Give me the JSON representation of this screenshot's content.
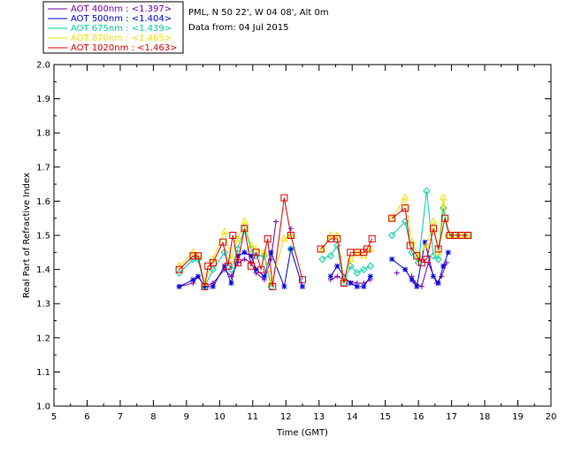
{
  "header": {
    "location": "PML, N 50 22', W 04 08', Alt 0m",
    "date": "Data from: 04 Jul 2015"
  },
  "legend": [
    {
      "label": "AOT  400nm : <1.397>",
      "color": "#7a00a8",
      "marker": "plus"
    },
    {
      "label": "AOT  500nm : <1.404>",
      "color": "#0000e0",
      "marker": "asterisk"
    },
    {
      "label": "AOT  675nm : <1.439>",
      "color": "#00d0a0",
      "marker": "diamond"
    },
    {
      "label": "AOT  870nm : <1.465>",
      "color": "#f0e000",
      "marker": "triangle"
    },
    {
      "label": "AOT 1020nm : <1.463>",
      "color": "#e00000",
      "marker": "square"
    }
  ],
  "chart_data": {
    "type": "line",
    "xlabel": "Time (GMT)",
    "ylabel": "Real Part of Refractive Index",
    "xlim": [
      5,
      20
    ],
    "ylim": [
      1.0,
      2.0
    ],
    "xticks": [
      "5",
      "6",
      "7",
      "8",
      "9",
      "10",
      "11",
      "12",
      "13",
      "14",
      "15",
      "16",
      "17",
      "18",
      "19",
      "20"
    ],
    "yticks": [
      "1.0",
      "1.1",
      "1.2",
      "1.3",
      "1.4",
      "1.5",
      "1.6",
      "1.7",
      "1.8",
      "1.9",
      "2.0"
    ],
    "series": [
      {
        "name": "AOT  400nm",
        "color": "#7a00a8",
        "marker": "plus",
        "points": [
          [
            8.78,
            1.35
          ],
          [
            9.2,
            1.36
          ],
          [
            9.35,
            1.38
          ],
          [
            9.55,
            1.35
          ],
          [
            9.8,
            1.36
          ],
          [
            10.15,
            1.4
          ],
          [
            10.35,
            1.38
          ],
          [
            10.55,
            1.42
          ],
          [
            10.75,
            1.43
          ],
          [
            10.95,
            1.42
          ],
          [
            11.1,
            1.39
          ],
          [
            11.35,
            1.37
          ],
          [
            11.55,
            1.43
          ],
          [
            11.7,
            1.54
          ],
          [
            12.15,
            1.52
          ],
          [
            13.35,
            1.37
          ],
          [
            13.55,
            1.38
          ],
          [
            13.75,
            1.37
          ],
          [
            14.15,
            1.36
          ],
          [
            14.35,
            1.36
          ],
          [
            14.55,
            1.37
          ],
          [
            15.35,
            1.39
          ],
          [
            15.8,
            1.38
          ],
          [
            15.9,
            1.36
          ],
          [
            16.1,
            1.35
          ],
          [
            16.3,
            1.42
          ],
          [
            16.55,
            1.36
          ],
          [
            16.7,
            1.38
          ],
          [
            16.85,
            1.42
          ]
        ]
      },
      {
        "name": "AOT  500nm",
        "color": "#0000e0",
        "marker": "asterisk",
        "points": [
          [
            8.78,
            1.35
          ],
          [
            9.2,
            1.37
          ],
          [
            9.35,
            1.38
          ],
          [
            9.55,
            1.35
          ],
          [
            9.8,
            1.35
          ],
          [
            10.15,
            1.41
          ],
          [
            10.35,
            1.36
          ],
          [
            10.55,
            1.44
          ],
          [
            10.75,
            1.45
          ],
          [
            10.95,
            1.44
          ],
          [
            11.1,
            1.4
          ],
          [
            11.35,
            1.38
          ],
          [
            11.55,
            1.45
          ],
          [
            11.95,
            1.35
          ],
          [
            12.15,
            1.46
          ],
          [
            12.5,
            1.35
          ],
          [
            13.35,
            1.38
          ],
          [
            13.55,
            1.41
          ],
          [
            13.75,
            1.38
          ],
          [
            13.95,
            1.36
          ],
          [
            14.15,
            1.35
          ],
          [
            14.35,
            1.35
          ],
          [
            14.55,
            1.38
          ],
          [
            15.2,
            1.43
          ],
          [
            15.6,
            1.4
          ],
          [
            15.8,
            1.37
          ],
          [
            15.95,
            1.35
          ],
          [
            16.2,
            1.48
          ],
          [
            16.45,
            1.38
          ],
          [
            16.6,
            1.36
          ],
          [
            16.75,
            1.41
          ],
          [
            16.9,
            1.45
          ]
        ]
      },
      {
        "name": "AOT  675nm",
        "color": "#00d0a0",
        "marker": "diamond",
        "points": [
          [
            8.78,
            1.39
          ],
          [
            9.2,
            1.43
          ],
          [
            9.35,
            1.43
          ],
          [
            9.55,
            1.35
          ],
          [
            9.8,
            1.4
          ],
          [
            10.15,
            1.45
          ],
          [
            10.35,
            1.4
          ],
          [
            10.55,
            1.46
          ],
          [
            10.75,
            1.52
          ],
          [
            10.95,
            1.46
          ],
          [
            11.1,
            1.44
          ],
          [
            11.35,
            1.44
          ],
          [
            11.55,
            1.35
          ],
          [
            12.15,
            1.46
          ],
          [
            13.1,
            1.43
          ],
          [
            13.35,
            1.44
          ],
          [
            13.55,
            1.47
          ],
          [
            13.75,
            1.36
          ],
          [
            13.95,
            1.41
          ],
          [
            14.15,
            1.39
          ],
          [
            14.35,
            1.4
          ],
          [
            14.55,
            1.41
          ],
          [
            15.2,
            1.5
          ],
          [
            15.6,
            1.54
          ],
          [
            15.8,
            1.45
          ],
          [
            16.0,
            1.42
          ],
          [
            16.25,
            1.63
          ],
          [
            16.45,
            1.44
          ],
          [
            16.6,
            1.43
          ],
          [
            16.75,
            1.58
          ],
          [
            16.9,
            1.5
          ],
          [
            17.1,
            1.5
          ],
          [
            17.3,
            1.5
          ],
          [
            17.5,
            1.5
          ]
        ]
      },
      {
        "name": "AOT  870nm",
        "color": "#f0e000",
        "marker": "triangle",
        "points": [
          [
            8.78,
            1.41
          ],
          [
            9.2,
            1.45
          ],
          [
            9.35,
            1.44
          ],
          [
            9.55,
            1.36
          ],
          [
            9.8,
            1.43
          ],
          [
            10.15,
            1.51
          ],
          [
            10.35,
            1.43
          ],
          [
            10.55,
            1.49
          ],
          [
            10.75,
            1.54
          ],
          [
            10.95,
            1.47
          ],
          [
            11.1,
            1.46
          ],
          [
            11.35,
            1.45
          ],
          [
            11.55,
            1.36
          ],
          [
            11.95,
            1.49
          ],
          [
            12.15,
            1.5
          ],
          [
            13.1,
            1.46
          ],
          [
            13.35,
            1.5
          ],
          [
            13.55,
            1.5
          ],
          [
            13.75,
            1.37
          ],
          [
            13.95,
            1.43
          ],
          [
            14.15,
            1.45
          ],
          [
            14.35,
            1.44
          ],
          [
            14.55,
            1.46
          ],
          [
            15.2,
            1.55
          ],
          [
            15.6,
            1.61
          ],
          [
            15.8,
            1.48
          ],
          [
            16.0,
            1.44
          ],
          [
            16.25,
            1.47
          ],
          [
            16.45,
            1.54
          ],
          [
            16.6,
            1.45
          ],
          [
            16.75,
            1.61
          ],
          [
            16.9,
            1.5
          ],
          [
            17.1,
            1.5
          ],
          [
            17.3,
            1.5
          ],
          [
            17.5,
            1.5
          ]
        ]
      },
      {
        "name": "AOT 1020nm",
        "color": "#e00000",
        "marker": "square",
        "points": [
          [
            8.78,
            1.4
          ],
          [
            9.2,
            1.44
          ],
          [
            9.35,
            1.44
          ],
          [
            9.55,
            1.35
          ],
          [
            9.65,
            1.41
          ],
          [
            9.8,
            1.42
          ],
          [
            10.1,
            1.48
          ],
          [
            10.25,
            1.41
          ],
          [
            10.4,
            1.5
          ],
          [
            10.55,
            1.42
          ],
          [
            10.75,
            1.52
          ],
          [
            10.95,
            1.41
          ],
          [
            11.1,
            1.45
          ],
          [
            11.25,
            1.4
          ],
          [
            11.45,
            1.49
          ],
          [
            11.6,
            1.35
          ],
          [
            11.95,
            1.61
          ],
          [
            12.15,
            1.5
          ],
          [
            12.5,
            1.37
          ],
          [
            13.05,
            1.46
          ],
          [
            13.35,
            1.49
          ],
          [
            13.55,
            1.49
          ],
          [
            13.75,
            1.36
          ],
          [
            13.95,
            1.45
          ],
          [
            14.15,
            1.45
          ],
          [
            14.35,
            1.45
          ],
          [
            14.45,
            1.46
          ],
          [
            14.6,
            1.49
          ],
          [
            15.2,
            1.55
          ],
          [
            15.6,
            1.58
          ],
          [
            15.75,
            1.47
          ],
          [
            15.95,
            1.44
          ],
          [
            16.1,
            1.42
          ],
          [
            16.25,
            1.43
          ],
          [
            16.45,
            1.52
          ],
          [
            16.6,
            1.46
          ],
          [
            16.8,
            1.55
          ],
          [
            16.95,
            1.5
          ],
          [
            17.1,
            1.5
          ],
          [
            17.3,
            1.5
          ],
          [
            17.5,
            1.5
          ]
        ]
      }
    ]
  }
}
